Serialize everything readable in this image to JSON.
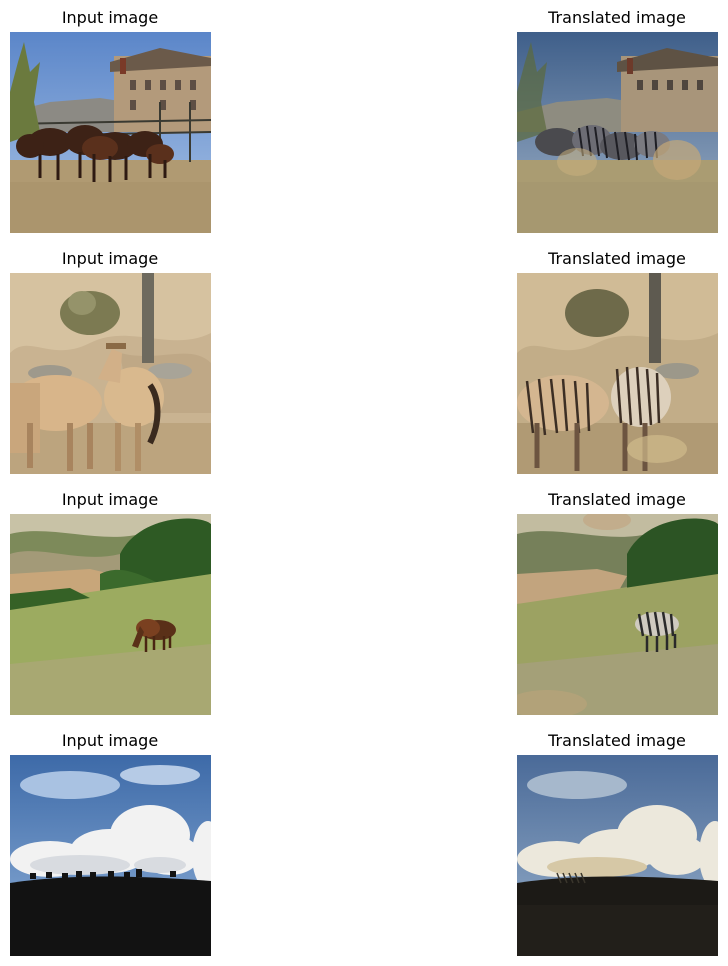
{
  "figure": {
    "rows": [
      {
        "input_label": "Input image",
        "output_label": "Translated image",
        "scene": "horses-corral"
      },
      {
        "input_label": "Input image",
        "output_label": "Translated image",
        "scene": "two-horses-hillside"
      },
      {
        "input_label": "Input image",
        "output_label": "Translated image",
        "scene": "horse-grazing-meadow"
      },
      {
        "input_label": "Input image",
        "output_label": "Translated image",
        "scene": "horse-silhouettes-ridge"
      }
    ]
  }
}
